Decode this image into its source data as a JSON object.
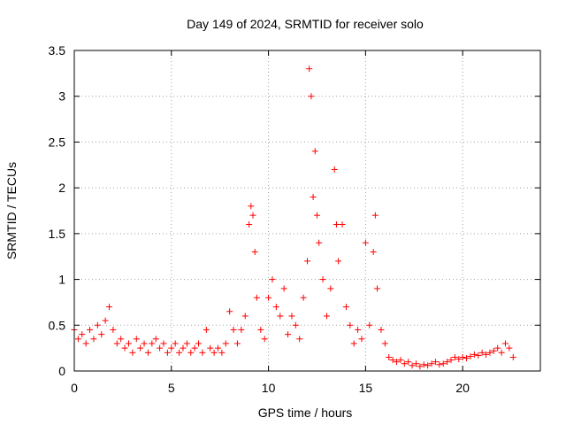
{
  "chart_data": {
    "type": "scatter",
    "title": "Day 149 of 2024, SRMTID for receiver solo",
    "xlabel": "GPS time / hours",
    "ylabel": "SRMTID / TECUs",
    "xlim": [
      0,
      24
    ],
    "ylim": [
      0,
      3.5
    ],
    "x_ticks": [
      0,
      5,
      10,
      15,
      20
    ],
    "x_tick_labels": [
      "0",
      "5",
      "10",
      "15",
      "20"
    ],
    "y_ticks": [
      0,
      0.5,
      1,
      1.5,
      2,
      2.5,
      3,
      3.5
    ],
    "y_tick_labels": [
      "0",
      "0.5",
      "1",
      "1.5",
      "2",
      "2.5",
      "3",
      "3.5"
    ],
    "grid": true,
    "marker": "+",
    "series": [
      {
        "name": "SRMTID",
        "color": "#ff0000",
        "x": [
          0.0,
          0.2,
          0.4,
          0.6,
          0.8,
          1.0,
          1.2,
          1.4,
          1.6,
          1.8,
          2.0,
          2.2,
          2.4,
          2.6,
          2.8,
          3.0,
          3.2,
          3.4,
          3.6,
          3.8,
          4.0,
          4.2,
          4.4,
          4.6,
          4.8,
          5.0,
          5.2,
          5.4,
          5.6,
          5.8,
          6.0,
          6.2,
          6.4,
          6.6,
          6.8,
          7.0,
          7.2,
          7.4,
          7.6,
          7.8,
          8.0,
          8.2,
          8.4,
          8.6,
          8.8,
          9.0,
          9.1,
          9.2,
          9.3,
          9.4,
          9.6,
          9.8,
          10.0,
          10.2,
          10.4,
          10.6,
          10.8,
          11.0,
          11.2,
          11.4,
          11.6,
          11.8,
          12.0,
          12.1,
          12.2,
          12.3,
          12.4,
          12.5,
          12.6,
          12.8,
          13.0,
          13.2,
          13.4,
          13.5,
          13.6,
          13.8,
          14.0,
          14.2,
          14.4,
          14.6,
          14.8,
          15.0,
          15.2,
          15.4,
          15.5,
          15.6,
          15.8,
          16.0,
          16.2,
          16.4,
          16.6,
          16.8,
          17.0,
          17.2,
          17.4,
          17.6,
          17.8,
          18.0,
          18.2,
          18.4,
          18.6,
          18.8,
          19.0,
          19.2,
          19.4,
          19.6,
          19.8,
          20.0,
          20.2,
          20.4,
          20.6,
          20.8,
          21.0,
          21.2,
          21.4,
          21.6,
          21.8,
          22.0,
          22.2,
          22.4,
          22.6
        ],
        "y": [
          0.45,
          0.35,
          0.4,
          0.3,
          0.45,
          0.35,
          0.5,
          0.4,
          0.55,
          0.7,
          0.45,
          0.3,
          0.35,
          0.25,
          0.3,
          0.2,
          0.35,
          0.25,
          0.3,
          0.2,
          0.3,
          0.35,
          0.25,
          0.3,
          0.2,
          0.25,
          0.3,
          0.2,
          0.25,
          0.3,
          0.2,
          0.25,
          0.3,
          0.2,
          0.45,
          0.25,
          0.2,
          0.25,
          0.2,
          0.3,
          0.65,
          0.45,
          0.3,
          0.45,
          0.6,
          1.6,
          1.8,
          1.7,
          1.3,
          0.8,
          0.45,
          0.35,
          0.8,
          1.0,
          0.7,
          0.6,
          0.9,
          0.4,
          0.6,
          0.5,
          0.35,
          0.8,
          1.2,
          3.3,
          3.0,
          1.9,
          2.4,
          1.7,
          1.4,
          1.0,
          0.6,
          0.9,
          2.2,
          1.6,
          1.2,
          1.6,
          0.7,
          0.5,
          0.3,
          0.45,
          0.35,
          1.4,
          0.5,
          1.3,
          1.7,
          0.9,
          0.45,
          0.3,
          0.15,
          0.12,
          0.1,
          0.12,
          0.08,
          0.1,
          0.06,
          0.08,
          0.05,
          0.07,
          0.06,
          0.08,
          0.1,
          0.07,
          0.08,
          0.1,
          0.12,
          0.15,
          0.13,
          0.15,
          0.14,
          0.16,
          0.18,
          0.17,
          0.2,
          0.18,
          0.2,
          0.22,
          0.25,
          0.2,
          0.3,
          0.25,
          0.15
        ]
      }
    ]
  }
}
